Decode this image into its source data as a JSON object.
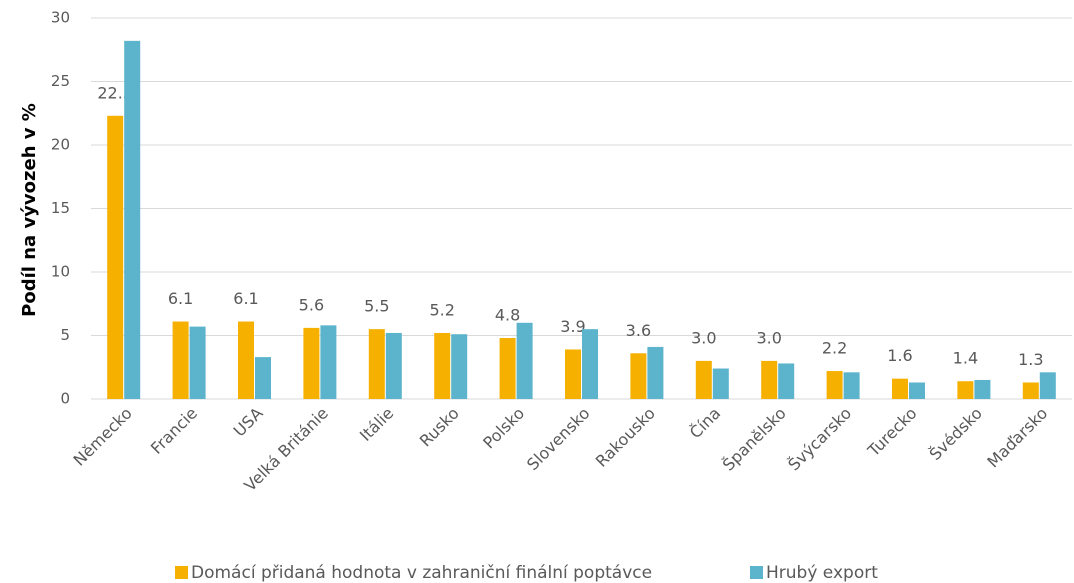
{
  "chart_data": {
    "type": "bar",
    "y_label": "Podíl na vývozeh v %",
    "categories": [
      "Německo",
      "Francie",
      "USA",
      "Velká Británie",
      "Itálie",
      "Rusko",
      "Polsko",
      "Slovensko",
      "Rakousko",
      "Čína",
      "Španělsko",
      "Švýcarsko",
      "Turecko",
      "Švédsko",
      "Maďarsko"
    ],
    "series": [
      {
        "name": "Domácí přidaná hodnota v zahraniční finální poptávce",
        "color": "#f5b000",
        "values": [
          22.3,
          6.1,
          6.1,
          5.6,
          5.5,
          5.2,
          4.8,
          3.9,
          3.6,
          3.0,
          3.0,
          2.2,
          1.6,
          1.4,
          1.3
        ],
        "value_labels": [
          "22.3",
          "6.1",
          "6.1",
          "5.6",
          "5.5",
          "5.2",
          "4.8",
          "3.9",
          "3.6",
          "3.0",
          "3.0",
          "2.2",
          "1.6",
          "1.4",
          "1.3"
        ]
      },
      {
        "name": "Hrubý export",
        "color": "#5bb4cc",
        "values": [
          28.2,
          5.7,
          3.3,
          5.8,
          5.2,
          5.1,
          6.0,
          5.5,
          4.1,
          2.4,
          2.8,
          2.1,
          1.3,
          1.5,
          2.1
        ]
      }
    ],
    "ylim": [
      0,
      30
    ],
    "yticks": [
      0,
      5,
      10,
      15,
      20,
      25,
      30
    ],
    "grid": true,
    "legend": "bottom"
  }
}
